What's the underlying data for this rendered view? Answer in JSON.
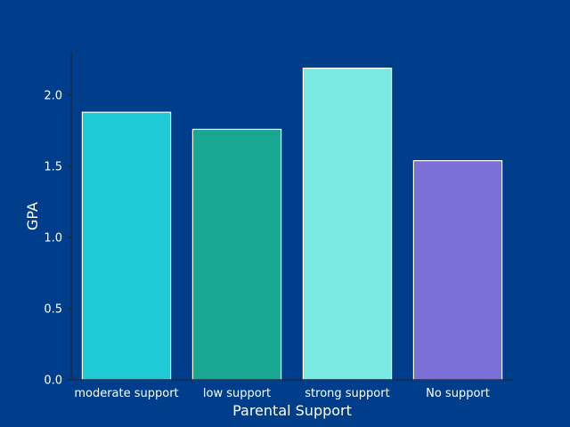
{
  "chart_data": {
    "type": "bar",
    "categories": [
      "moderate support",
      "low support",
      "strong support",
      "No support"
    ],
    "values": [
      1.88,
      1.76,
      2.19,
      1.54
    ],
    "colors": [
      "#1ecbd6",
      "#18a892",
      "#7aebe2",
      "#7b70d8"
    ],
    "xlabel": "Parental Support",
    "ylabel": "GPA",
    "ylim": [
      0,
      2.3
    ],
    "yticks": [
      "0.0",
      "0.5",
      "1.0",
      "1.5",
      "2.0"
    ],
    "background": "#003d8a",
    "grid": false
  }
}
